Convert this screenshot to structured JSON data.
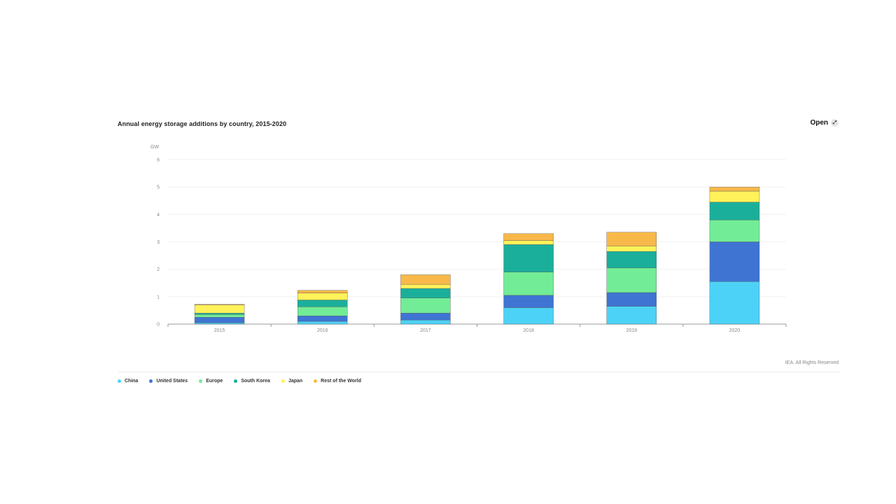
{
  "chart": {
    "title": "Annual energy storage additions by country, 2015-2020",
    "open_label": "Open",
    "open_icon": "expand-icon",
    "credit": "IEA. All Rights Reserved"
  },
  "chart_data": {
    "type": "bar",
    "stacked": true,
    "title": "Annual energy storage additions by country, 2015-2020",
    "ylabel": "GW",
    "xlabel": "",
    "ylim": [
      0,
      6
    ],
    "yticks": [
      0,
      1,
      2,
      3,
      4,
      5,
      6
    ],
    "grid": true,
    "legend_position": "bottom-left",
    "categories": [
      "2015",
      "2016",
      "2017",
      "2018",
      "2019",
      "2020"
    ],
    "series": [
      {
        "name": "China",
        "color": "#4dd2f7",
        "values": [
          0.05,
          0.1,
          0.15,
          0.6,
          0.65,
          1.55
        ]
      },
      {
        "name": "United States",
        "color": "#3f74d3",
        "values": [
          0.2,
          0.2,
          0.25,
          0.45,
          0.5,
          1.45
        ]
      },
      {
        "name": "Europe",
        "color": "#72ec96",
        "values": [
          0.1,
          0.33,
          0.55,
          0.85,
          0.9,
          0.8
        ]
      },
      {
        "name": "South Korea",
        "color": "#1aaf9a",
        "values": [
          0.05,
          0.25,
          0.35,
          1.0,
          0.6,
          0.65
        ]
      },
      {
        "name": "Japan",
        "color": "#fff25a",
        "values": [
          0.3,
          0.25,
          0.15,
          0.15,
          0.2,
          0.4
        ]
      },
      {
        "name": "Rest of the World",
        "color": "#f8b94a",
        "values": [
          0.02,
          0.1,
          0.35,
          0.25,
          0.5,
          0.15
        ]
      }
    ]
  }
}
